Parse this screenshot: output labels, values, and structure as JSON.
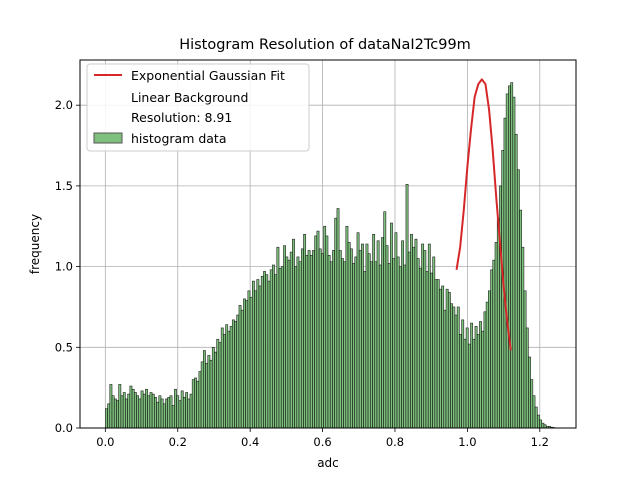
{
  "chart_data": {
    "type": "bar",
    "title": "Histogram Resolution of dataNaI2Tc99m",
    "xlabel": "adc",
    "ylabel": "frequency",
    "xlim": [
      -0.07,
      1.3
    ],
    "ylim": [
      0,
      2.28
    ],
    "xticks": [
      0.0,
      0.2,
      0.4,
      0.6,
      0.8,
      1.0,
      1.2
    ],
    "xtick_labels": [
      "0.0",
      "0.2",
      "0.4",
      "0.6",
      "0.8",
      "1.0",
      "1.2"
    ],
    "yticks": [
      0.0,
      0.5,
      1.0,
      1.5,
      2.0
    ],
    "ytick_labels": [
      "0.0",
      "0.5",
      "1.0",
      "1.5",
      "2.0"
    ],
    "grid": true,
    "legend_position": "top-left",
    "legend": [
      {
        "label": "Exponential Gaussian Fit",
        "kind": "line",
        "color": "#d62728"
      },
      {
        "label": "Linear Background",
        "kind": "none",
        "color": ""
      },
      {
        "label": "Resolution: 8.91",
        "kind": "none",
        "color": ""
      },
      {
        "label": "histogram data",
        "kind": "patch",
        "color": "#7fc07f"
      }
    ],
    "histogram": {
      "name": "histogram data",
      "bin_start": 0.0,
      "bin_width": 0.00615,
      "fill_color": "#7fc07f",
      "edge_color": "#000000",
      "values": [
        0.12,
        0.15,
        0.27,
        0.2,
        0.18,
        0.17,
        0.27,
        0.2,
        0.22,
        0.18,
        0.21,
        0.26,
        0.24,
        0.22,
        0.2,
        0.18,
        0.23,
        0.21,
        0.24,
        0.2,
        0.22,
        0.21,
        0.19,
        0.16,
        0.2,
        0.18,
        0.15,
        0.18,
        0.19,
        0.2,
        0.14,
        0.24,
        0.2,
        0.17,
        0.23,
        0.19,
        0.22,
        0.18,
        0.21,
        0.3,
        0.31,
        0.29,
        0.35,
        0.41,
        0.48,
        0.4,
        0.45,
        0.42,
        0.5,
        0.47,
        0.55,
        0.53,
        0.62,
        0.58,
        0.64,
        0.6,
        0.63,
        0.67,
        0.66,
        0.7,
        0.76,
        0.73,
        0.8,
        0.79,
        0.85,
        0.81,
        0.91,
        0.85,
        0.92,
        0.88,
        0.94,
        0.97,
        0.95,
        0.91,
        0.98,
        1.01,
        0.95,
        1.12,
        0.99,
        1.0,
        1.13,
        1.06,
        1.04,
        1.09,
        1.17,
        1.0,
        1.06,
        1.03,
        1.11,
        1.2,
        1.07,
        1.1,
        1.07,
        1.1,
        1.19,
        1.22,
        1.11,
        1.08,
        1.25,
        1.19,
        1.07,
        1.03,
        1.1,
        1.3,
        1.36,
        1.1,
        1.05,
        1.03,
        1.25,
        1.15,
        1.11,
        1.02,
        1.06,
        1.21,
        1.1,
        1.14,
        0.97,
        1.14,
        1.08,
        1.03,
        1.2,
        1.03,
        1.16,
        1.01,
        1.18,
        1.34,
        1.13,
        1.02,
        1.27,
        1.05,
        1.21,
        1.06,
        1.0,
        1.16,
        1.01,
        1.51,
        1.09,
        1.2,
        1.12,
        1.17,
        1.05,
        0.99,
        1.14,
        1.1,
        0.97,
        1.14,
        0.96,
        1.06,
        0.92,
        0.92,
        0.86,
        0.88,
        0.73,
        0.86,
        0.84,
        0.77,
        0.75,
        0.7,
        0.75,
        0.58,
        0.67,
        0.55,
        0.62,
        0.52,
        0.65,
        0.55,
        0.63,
        0.58,
        0.66,
        0.6,
        0.72,
        0.78,
        0.85,
        0.98,
        1.04,
        1.15,
        1.3,
        1.5,
        1.72,
        1.92,
        2.07,
        2.12,
        2.14,
        2.05,
        1.82,
        1.6,
        1.35,
        1.12,
        0.85,
        0.62,
        0.44,
        0.3,
        0.2,
        0.13,
        0.08,
        0.05,
        0.03,
        0.02,
        0.01,
        0.01,
        0.005,
        0.003
      ]
    },
    "fit_curve": {
      "name": "Exponential Gaussian Fit",
      "color": "#d62728",
      "x": [
        0.97,
        0.98,
        0.99,
        1.0,
        1.01,
        1.02,
        1.03,
        1.04,
        1.05,
        1.06,
        1.07,
        1.08,
        1.09,
        1.1,
        1.11,
        1.12
      ],
      "y": [
        0.98,
        1.12,
        1.35,
        1.62,
        1.85,
        2.05,
        2.13,
        2.16,
        2.13,
        1.97,
        1.72,
        1.42,
        1.15,
        0.88,
        0.66,
        0.48
      ]
    }
  }
}
